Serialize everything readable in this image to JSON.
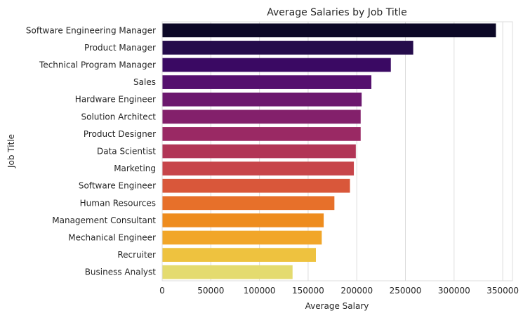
{
  "chart_data": {
    "type": "bar",
    "orientation": "horizontal",
    "title": "Average Salaries by Job Title",
    "xlabel": "Average Salary",
    "ylabel": "Job Title",
    "xlim": [
      0,
      360000
    ],
    "xticks": [
      0,
      50000,
      100000,
      150000,
      200000,
      250000,
      300000,
      350000
    ],
    "grid": "vertical",
    "categories": [
      "Software Engineering Manager",
      "Product Manager",
      "Technical Program Manager",
      "Sales",
      "Hardware Engineer",
      "Solution Architect",
      "Product Designer",
      "Data Scientist",
      "Marketing",
      "Software Engineer",
      "Human Resources",
      "Management Consultant",
      "Mechanical Engineer",
      "Recruiter",
      "Business Analyst"
    ],
    "values": [
      343000,
      258000,
      235000,
      215000,
      205000,
      204000,
      204000,
      199000,
      197000,
      193000,
      177000,
      166000,
      164000,
      158000,
      134000
    ],
    "colors": [
      "#0c0826",
      "#250c4b",
      "#3a0963",
      "#55106e",
      "#6c186e",
      "#83206b",
      "#9a2964",
      "#b13556",
      "#c7454a",
      "#d9573a",
      "#e7702a",
      "#ee8c1e",
      "#f1a629",
      "#eec23f",
      "#e4db6f"
    ]
  }
}
